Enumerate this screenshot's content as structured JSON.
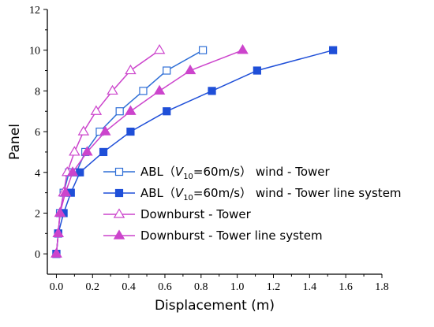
{
  "chart_data": {
    "type": "line",
    "xlabel": "Displacement (m)",
    "ylabel": "Panel",
    "xlim": [
      -0.05,
      1.8
    ],
    "ylim": [
      -1,
      12
    ],
    "x_ticks": [
      "0.0",
      "0.2",
      "0.4",
      "0.6",
      "0.8",
      "1.0",
      "1.2",
      "1.4",
      "1.6",
      "1.8"
    ],
    "y_ticks": [
      "0",
      "2",
      "4",
      "6",
      "8",
      "10",
      "12"
    ],
    "grid": false,
    "legend_position": "center-right",
    "series": [
      {
        "name": "ABL（V10=60m/s） wind - Tower",
        "legend": {
          "prefix": "ABL（",
          "var": "V",
          "sub": "10",
          "suffix": "=60m/s） wind - Tower"
        },
        "color": "#2f6fd6",
        "marker": "square-open",
        "x": [
          0.0,
          0.01,
          0.02,
          0.04,
          0.07,
          0.11,
          0.16,
          0.24,
          0.35,
          0.48,
          0.61,
          0.81
        ],
        "y": [
          0,
          1,
          2,
          3,
          4,
          4,
          5,
          6,
          7,
          8,
          9,
          10
        ]
      },
      {
        "name": "ABL（V10=60m/s） wind - Tower line system",
        "legend": {
          "prefix": "ABL（",
          "var": "V",
          "sub": "10",
          "suffix": "=60m/s） wind - Tower line system"
        },
        "color": "#1f4fd8",
        "marker": "square-filled",
        "x": [
          0.0,
          0.01,
          0.04,
          0.08,
          0.13,
          0.26,
          0.41,
          0.61,
          0.86,
          1.11,
          1.53
        ],
        "y": [
          0,
          1,
          2,
          3,
          4,
          5,
          6,
          7,
          8,
          9,
          10
        ]
      },
      {
        "name": "Downburst - Tower",
        "legend": {
          "prefix": "Downburst - Tower"
        },
        "color": "#cc44cc",
        "marker": "triangle-open",
        "x": [
          0.0,
          0.01,
          0.02,
          0.04,
          0.06,
          0.1,
          0.15,
          0.22,
          0.31,
          0.41,
          0.57
        ],
        "y": [
          0,
          1,
          2,
          3,
          4,
          5,
          6,
          7,
          8,
          9,
          10
        ]
      },
      {
        "name": "Downburst - Tower line system",
        "legend": {
          "prefix": "Downburst - Tower line system"
        },
        "color": "#cc44cc",
        "marker": "triangle-filled",
        "x": [
          0.0,
          0.01,
          0.02,
          0.05,
          0.09,
          0.17,
          0.27,
          0.41,
          0.57,
          0.74,
          1.03
        ],
        "y": [
          0,
          1,
          2,
          3,
          4,
          5,
          6,
          7,
          8,
          9,
          10
        ]
      }
    ]
  }
}
